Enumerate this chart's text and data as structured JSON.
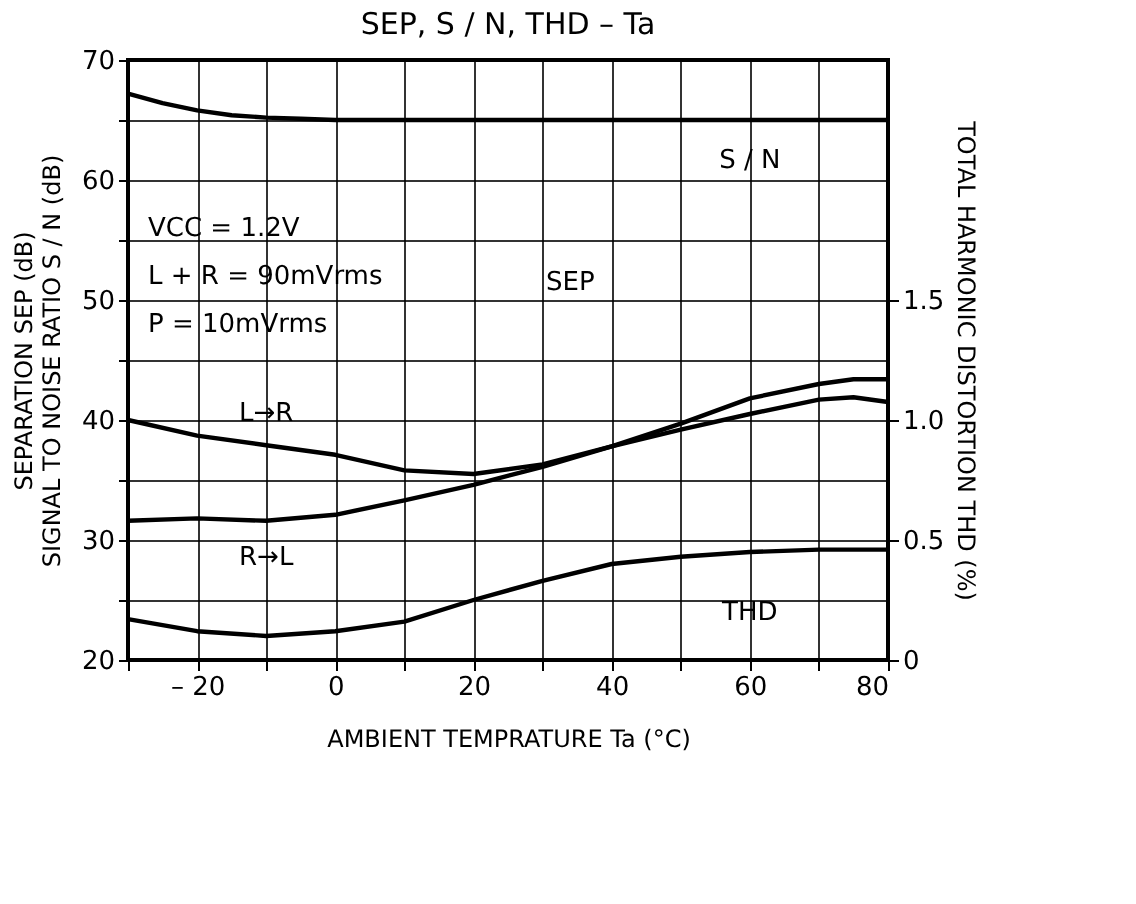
{
  "chart_data": {
    "type": "line",
    "title": "SEP, S / N, THD  –  Ta",
    "xlabel": "AMBIENT  TEMPRATURE    Ta    (°C)",
    "ylabel": [
      "SEPARATION    SEP    (dB)",
      "SIGNAL TO NOISE RATIO    S / N    (dB)"
    ],
    "y2label": "TOTAL HARMONIC DISTORTION    THD    (%)",
    "xlim": [
      -30,
      80
    ],
    "xticks": [
      {
        "value": -30,
        "label": null
      },
      {
        "value": -20,
        "label": "– 20"
      },
      {
        "value": -10,
        "label": null
      },
      0,
      {
        "value": 10,
        "label": null
      },
      20,
      {
        "value": 30,
        "label": null
      },
      40,
      {
        "value": 50,
        "label": null
      },
      60,
      {
        "value": 70,
        "label": null
      },
      80
    ],
    "ylim": [
      20,
      70
    ],
    "yticks": [
      20,
      {
        "value": 25,
        "label": null
      },
      30,
      {
        "value": 35,
        "label": null
      },
      40,
      {
        "value": 45,
        "label": null
      },
      50,
      {
        "value": 55,
        "label": null
      },
      60,
      {
        "value": 65,
        "label": null
      },
      70
    ],
    "y2lim": [
      0,
      2.5
    ],
    "y2ticks": [
      0,
      0.5,
      {
        "value": 1,
        "label": "1.0"
      },
      1.5
    ],
    "grid": true,
    "series": [
      {
        "name": "S / N",
        "color": "#000000",
        "x": [
          -30,
          -25,
          -20,
          -15,
          -10,
          -5,
          0,
          20,
          40,
          60,
          80
        ],
        "values": [
          67.2,
          66.4,
          65.8,
          65.4,
          65.2,
          65.1,
          65,
          65,
          65,
          65,
          65
        ]
      },
      {
        "name": "L→R",
        "color": "#000000",
        "x": [
          -30,
          -20,
          -10,
          0,
          10,
          20,
          30,
          40,
          50,
          60,
          70,
          75,
          80
        ],
        "values": [
          40.0,
          38.7,
          37.9,
          37.1,
          35.8,
          35.5,
          36.3,
          37.8,
          39.2,
          40.5,
          41.7,
          41.9,
          41.5
        ]
      },
      {
        "name": "R→L",
        "color": "#000000",
        "x": [
          -30,
          -20,
          -10,
          0,
          10,
          20,
          30,
          40,
          50,
          60,
          70,
          75,
          80
        ],
        "values": [
          31.6,
          31.8,
          31.6,
          32.1,
          33.3,
          34.6,
          36.1,
          37.8,
          39.7,
          41.8,
          43.0,
          43.4,
          43.4
        ]
      },
      {
        "name": "THD",
        "color": "#000000",
        "axis": "y2",
        "x": [
          -30,
          -20,
          -10,
          0,
          10,
          20,
          30,
          40,
          50,
          60,
          70,
          80
        ],
        "values": [
          0.17,
          0.12,
          0.1,
          0.12,
          0.16,
          0.25,
          0.33,
          0.4,
          0.43,
          0.45,
          0.46,
          0.46
        ]
      }
    ],
    "annotations": [
      "SEP",
      "VCC = 1.2V",
      "L + R = 90mVrms",
      "P = 10mVrms"
    ]
  }
}
